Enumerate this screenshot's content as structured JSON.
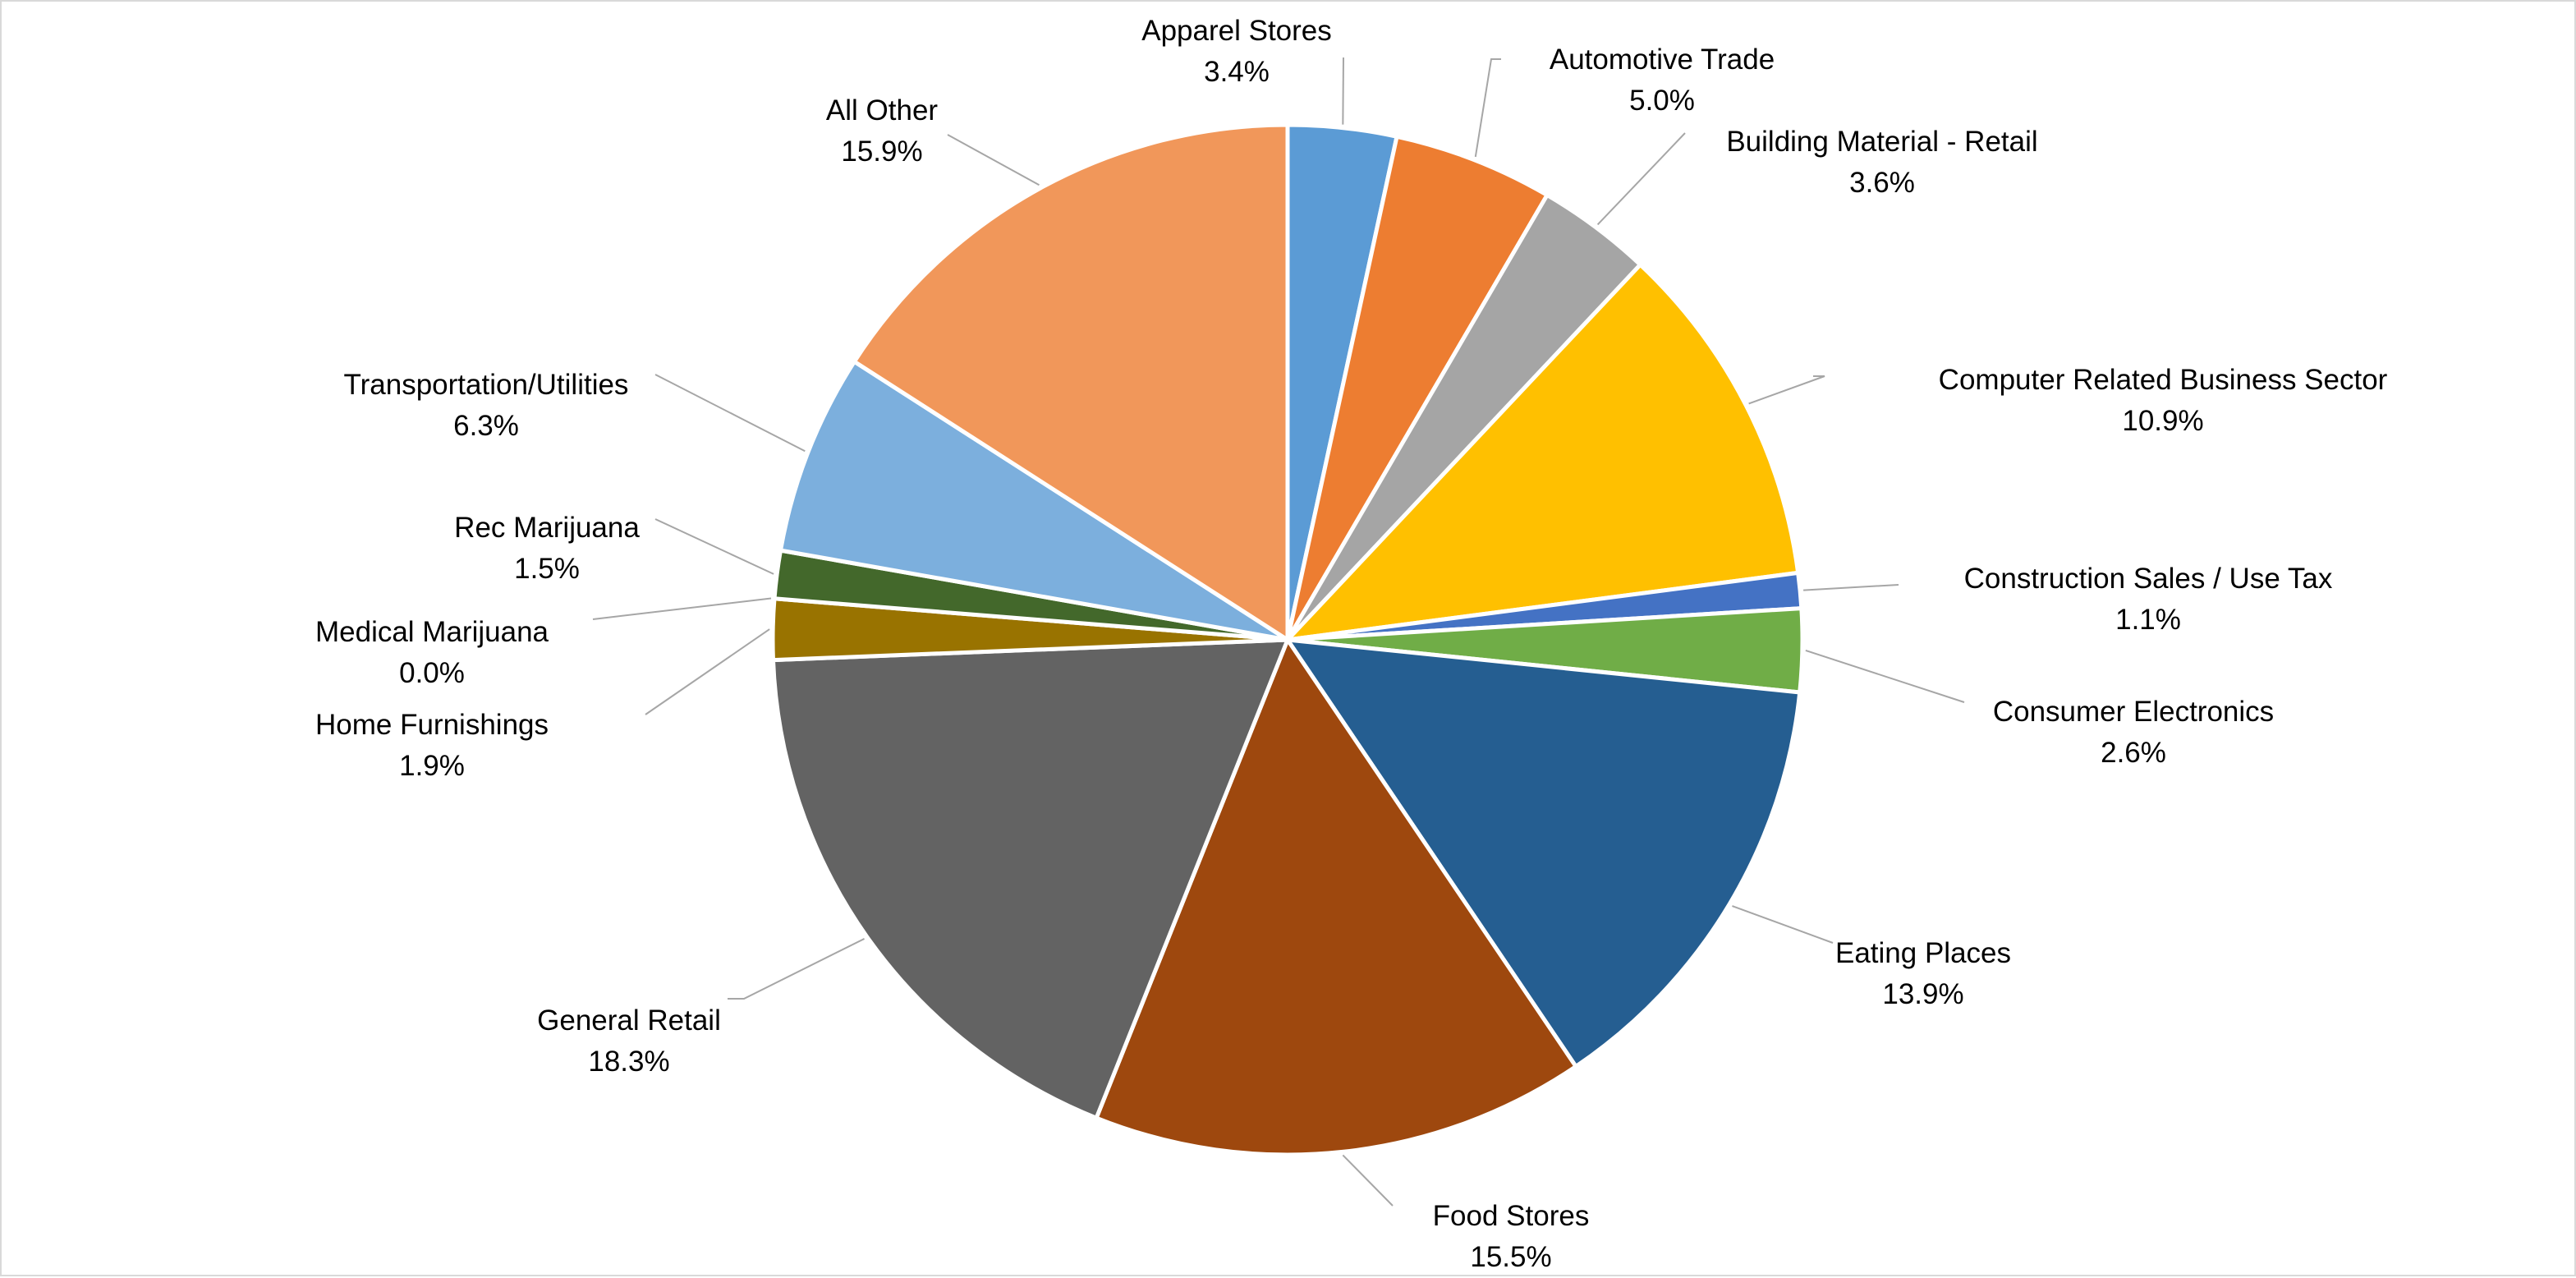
{
  "chart_data": {
    "type": "pie",
    "title": "",
    "start_angle_deg": 0,
    "direction": "clockwise",
    "slice_border_color": "#ffffff",
    "leader_line_color": "#a6a6a6",
    "slices": [
      {
        "label": "Apparel Stores",
        "value_label": "3.4%",
        "value": 3.4,
        "color": "#5b9bd5"
      },
      {
        "label": "Automotive Trade",
        "value_label": "5.0%",
        "value": 5.0,
        "color": "#ed7d31"
      },
      {
        "label": "Building Material - Retail",
        "value_label": "3.6%",
        "value": 3.6,
        "color": "#a5a5a5"
      },
      {
        "label": "Computer Related Business Sector",
        "value_label": "10.9%",
        "value": 10.9,
        "color": "#ffc000"
      },
      {
        "label": "Construction Sales / Use Tax",
        "value_label": "1.1%",
        "value": 1.1,
        "color": "#4472c4"
      },
      {
        "label": "Consumer Electronics",
        "value_label": "2.6%",
        "value": 2.6,
        "color": "#70ad47"
      },
      {
        "label": "Eating Places",
        "value_label": "13.9%",
        "value": 13.9,
        "color": "#255e91"
      },
      {
        "label": "Food Stores",
        "value_label": "15.5%",
        "value": 15.5,
        "color": "#9e480e"
      },
      {
        "label": "General Retail",
        "value_label": "18.3%",
        "value": 18.3,
        "color": "#636363"
      },
      {
        "label": "Home Furnishings",
        "value_label": "1.9%",
        "value": 1.9,
        "color": "#997300"
      },
      {
        "label": "Medical Marijuana",
        "value_label": "0.0%",
        "value": 0.0,
        "color": "#264478"
      },
      {
        "label": "Rec Marijuana",
        "value_label": "1.5%",
        "value": 1.5,
        "color": "#43682b"
      },
      {
        "label": "Transportation/Utilities",
        "value_label": "6.3%",
        "value": 6.3,
        "color": "#7cafdd"
      },
      {
        "label": "All Other",
        "value_label": "15.9%",
        "value": 15.9,
        "color": "#f1975a"
      }
    ]
  }
}
